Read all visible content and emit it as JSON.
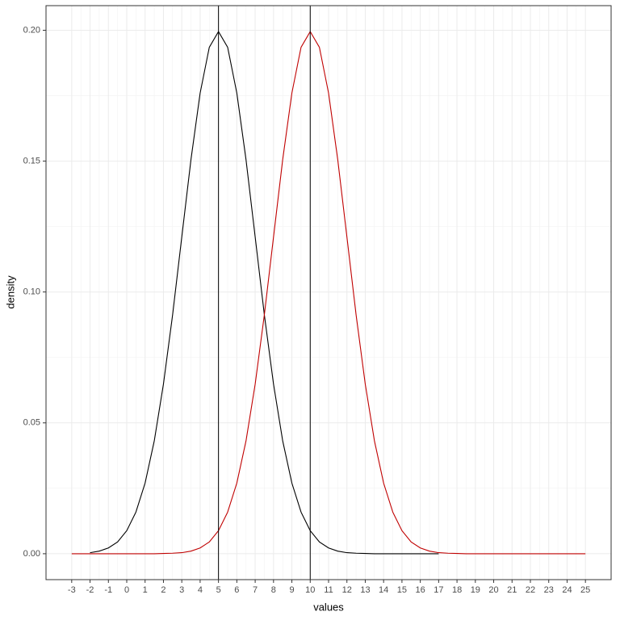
{
  "chart_data": {
    "type": "line",
    "x_label": "values",
    "y_label": "density",
    "x": [
      -3,
      -2.5,
      -2,
      -1.5,
      -1,
      -0.5,
      0,
      0.5,
      1,
      1.5,
      2,
      2.5,
      3,
      3.5,
      4,
      4.5,
      5,
      5.5,
      6,
      6.5,
      7,
      7.5,
      8,
      8.5,
      9,
      9.5,
      10,
      10.5,
      11,
      11.5,
      12,
      12.5,
      13,
      13.5,
      14,
      14.5,
      15,
      15.5,
      16,
      16.5,
      17,
      17.5,
      18,
      18.5,
      19,
      19.5,
      20,
      20.5,
      21,
      21.5,
      22,
      22.5,
      23,
      23.5,
      24,
      24.5,
      25
    ],
    "series": [
      {
        "color": "#000000",
        "values": [
          null,
          null,
          0.0004,
          0.001,
          0.0022,
          0.0045,
          0.0088,
          0.0159,
          0.027,
          0.0431,
          0.0648,
          0.0913,
          0.121,
          0.1506,
          0.176,
          0.1935,
          0.1995,
          0.1935,
          0.176,
          0.1506,
          0.121,
          0.0913,
          0.0648,
          0.0431,
          0.027,
          0.0159,
          0.0088,
          0.0045,
          0.0022,
          0.001,
          0.0004,
          0.0002,
          0.0001,
          0,
          0,
          0,
          0,
          0,
          0,
          0,
          0,
          null,
          null,
          null,
          null,
          null,
          null,
          null,
          null,
          null,
          null,
          null,
          null,
          null,
          null,
          null,
          null
        ]
      },
      {
        "color": "#c00000",
        "values": [
          0,
          0,
          0,
          0,
          0,
          0,
          0,
          0,
          0,
          0,
          0.0001,
          0.0002,
          0.0004,
          0.001,
          0.0022,
          0.0045,
          0.0088,
          0.0159,
          0.027,
          0.0431,
          0.0648,
          0.0913,
          0.121,
          0.1506,
          0.176,
          0.1935,
          0.1995,
          0.1935,
          0.176,
          0.1506,
          0.121,
          0.0913,
          0.0648,
          0.0431,
          0.027,
          0.0159,
          0.0088,
          0.0045,
          0.0022,
          0.001,
          0.0004,
          0.0002,
          0.0001,
          0,
          0,
          0,
          0,
          0,
          0,
          0,
          0,
          0,
          0,
          0,
          0,
          0,
          0
        ]
      }
    ],
    "vlines": [
      5,
      10
    ],
    "xlim": [
      -4.4,
      26.4
    ],
    "ylim": [
      -0.0099,
      0.2094
    ],
    "xticks": [
      -3,
      -2,
      -1,
      0,
      1,
      2,
      3,
      4,
      5,
      6,
      7,
      8,
      9,
      10,
      11,
      12,
      13,
      14,
      15,
      16,
      17,
      18,
      19,
      20,
      21,
      22,
      23,
      24,
      25
    ],
    "yticks": [
      {
        "value": 0,
        "label": "0.00"
      },
      {
        "value": 0.05,
        "label": "0.05"
      },
      {
        "value": 0.1,
        "label": "0.10"
      },
      {
        "value": 0.15,
        "label": "0.15"
      },
      {
        "value": 0.2,
        "label": "0.20"
      }
    ],
    "grid": true
  }
}
